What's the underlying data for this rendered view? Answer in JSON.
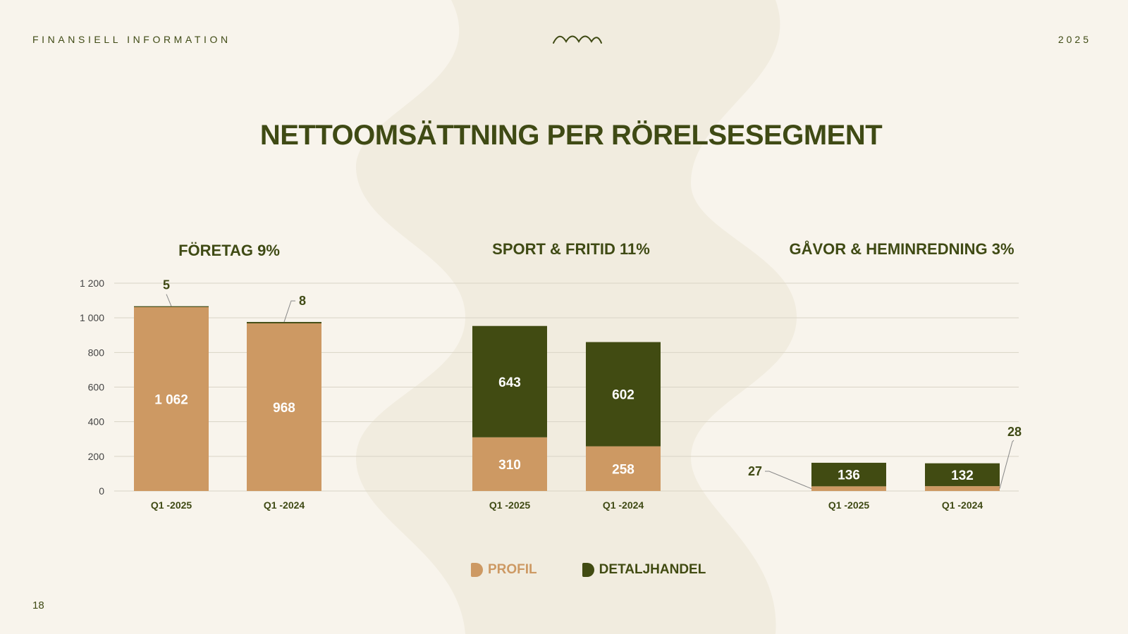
{
  "header": {
    "section_label": "FINANSIELL INFORMATION",
    "year": "2025"
  },
  "page_title": "NETTOOMSÄTTNING PER RÖRELSESEGMENT",
  "page_number": "18",
  "legend": {
    "items": [
      {
        "label": "PROFIL",
        "color": "#cd9963",
        "icon": "rounded-square-icon"
      },
      {
        "label": "DETALJHANDEL",
        "color": "#414b12",
        "icon": "rounded-square-icon"
      }
    ]
  },
  "colors": {
    "profil": "#cd9963",
    "detaljhandel": "#414b12",
    "text": "#3f4a14",
    "grid": "#d9d4c6"
  },
  "chart_data": {
    "type": "bar",
    "stacked": true,
    "ylim": [
      0,
      1200
    ],
    "yticks": [
      0,
      200,
      400,
      600,
      800,
      1000,
      1200
    ],
    "ytick_labels": [
      "0",
      "200",
      "400",
      "600",
      "800",
      "1 000",
      "1 200"
    ],
    "grid": true,
    "legend_position": "bottom",
    "groups": [
      {
        "title": "FÖRETAG 9%",
        "categories": [
          "Q1 -2025",
          "Q1 -2024"
        ],
        "series": [
          {
            "name": "PROFIL",
            "values": [
              1062,
              968
            ],
            "labels": [
              "1 062",
              "968"
            ]
          },
          {
            "name": "DETALJHANDEL",
            "values": [
              5,
              8
            ],
            "labels": [
              "5",
              "8"
            ]
          }
        ]
      },
      {
        "title": "SPORT & FRITID 11%",
        "categories": [
          "Q1 -2025",
          "Q1 -2024"
        ],
        "series": [
          {
            "name": "PROFIL",
            "values": [
              310,
              258
            ],
            "labels": [
              "310",
              "258"
            ]
          },
          {
            "name": "DETALJHANDEL",
            "values": [
              643,
              602
            ],
            "labels": [
              "643",
              "602"
            ]
          }
        ]
      },
      {
        "title": "GÅVOR & HEMINREDNING 3%",
        "categories": [
          "Q1 -2025",
          "Q1 -2024"
        ],
        "series": [
          {
            "name": "PROFIL",
            "values": [
              27,
              28
            ],
            "labels": [
              "27",
              "28"
            ]
          },
          {
            "name": "DETALJHANDEL",
            "values": [
              136,
              132
            ],
            "labels": [
              "136",
              "132"
            ]
          }
        ]
      }
    ]
  }
}
